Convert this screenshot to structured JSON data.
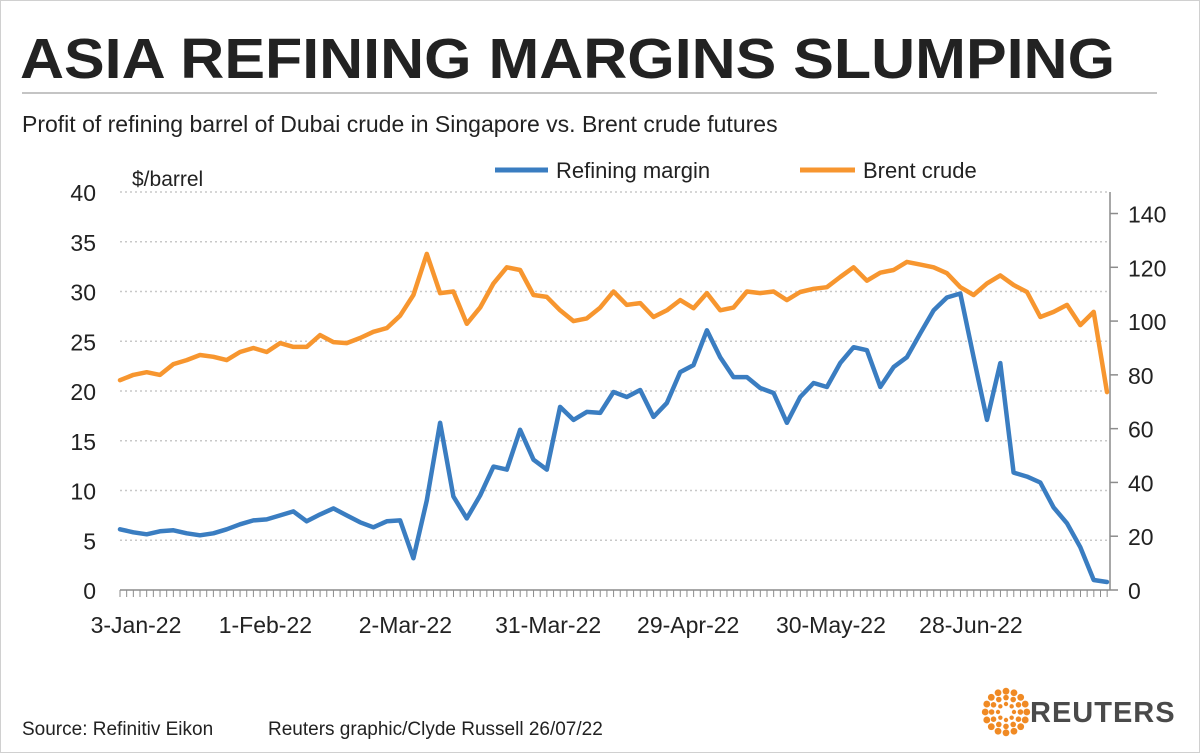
{
  "title": "ASIA REFINING MARGINS SLUMPING",
  "subtitle": "Profit of refining barrel of Dubai crude in Singapore vs. Brent crude futures",
  "footer": {
    "source": "Source: Refinitiv Eikon",
    "credit": "Reuters graphic/Clyde Russell 26/07/22",
    "logo": "REUTERS"
  },
  "colors": {
    "refining": "#3a7dc1",
    "brent": "#f7962f",
    "grid": "#c8c8c8",
    "axis": "#8c8c8c"
  },
  "chart_data": {
    "type": "line",
    "ylabel": "$/barrel",
    "ylim": [
      0,
      40
    ],
    "yticks": [
      0,
      5,
      10,
      15,
      20,
      25,
      30,
      35,
      40
    ],
    "y2lim": [
      0,
      148
    ],
    "y2ticks": [
      0,
      20,
      40,
      60,
      80,
      100,
      120,
      140
    ],
    "grid": true,
    "legend_position": "top",
    "x_labels": [
      {
        "label": "3-Jan-22",
        "index": 1.2
      },
      {
        "label": "1-Feb-22",
        "index": 10.9
      },
      {
        "label": "2-Mar-22",
        "index": 21.4
      },
      {
        "label": "31-Mar-22",
        "index": 32.1
      },
      {
        "label": "29-Apr-22",
        "index": 42.6
      },
      {
        "label": "30-May-22",
        "index": 53.3
      },
      {
        "label": "28-Jun-22",
        "index": 63.8
      }
    ],
    "series": [
      {
        "name": "Refining margin",
        "axis": "left",
        "values": [
          6.1,
          5.8,
          5.6,
          5.9,
          6.0,
          5.7,
          5.5,
          5.7,
          6.1,
          6.6,
          7.0,
          7.1,
          7.5,
          7.9,
          6.9,
          7.6,
          8.2,
          7.5,
          6.8,
          6.3,
          6.9,
          7.0,
          3.2,
          9.0,
          16.8,
          9.4,
          7.2,
          9.5,
          12.4,
          12.1,
          16.1,
          13.1,
          12.1,
          18.4,
          17.1,
          17.9,
          17.8,
          19.9,
          19.4,
          20.1,
          17.4,
          18.8,
          21.9,
          22.6,
          26.1,
          23.4,
          21.4,
          21.4,
          20.3,
          19.8,
          16.8,
          19.4,
          20.8,
          20.4,
          22.8,
          24.4,
          24.1,
          20.4,
          22.4,
          23.4,
          25.8,
          28.1,
          29.4,
          29.8,
          23.4,
          17.1,
          22.8,
          11.8,
          11.4,
          10.8,
          8.3,
          6.7,
          4.3,
          1.0,
          0.8
        ]
      },
      {
        "name": "Brent crude",
        "axis": "right",
        "values": [
          78,
          80,
          81,
          80,
          84,
          85.5,
          87.4,
          86.7,
          85.5,
          88.5,
          90,
          88.5,
          91.8,
          90.4,
          90.4,
          94.8,
          92.2,
          91.8,
          93.7,
          96,
          97.4,
          102,
          109.7,
          125,
          110.4,
          111,
          99,
          105,
          114,
          120,
          119,
          109.7,
          109,
          104,
          100,
          101,
          105,
          111,
          106,
          106.7,
          101.5,
          104,
          107.8,
          104.8,
          110.4,
          104,
          105,
          111,
          110.4,
          111,
          107.8,
          110.8,
          112,
          112.6,
          116.4,
          120,
          115,
          118,
          119,
          122,
          121,
          120,
          117.8,
          112.6,
          109.7,
          114,
          117,
          113.4,
          110.8,
          101.5,
          103.4,
          106,
          98.5,
          103.4,
          73.6
        ]
      }
    ]
  }
}
